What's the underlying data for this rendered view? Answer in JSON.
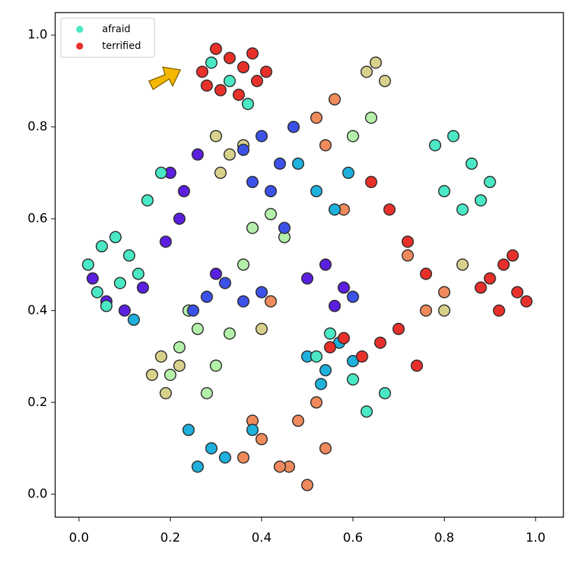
{
  "chart_data": {
    "type": "scatter",
    "xlim": [
      -0.052,
      1.061
    ],
    "ylim": [
      -0.05,
      1.049
    ],
    "xticks": [
      {
        "value": 0,
        "label": "0.0"
      },
      0.2,
      0.4,
      0.6,
      0.8,
      {
        "value": 1,
        "label": "1.0"
      }
    ],
    "yticks": [
      {
        "value": 0,
        "label": "0.0"
      },
      0.2,
      0.4,
      0.6,
      0.8,
      {
        "value": 1,
        "label": "1.0"
      }
    ],
    "legend": "upper left",
    "series": [
      {
        "color": "#ee8a5c",
        "x": [
          0.46,
          0.5,
          0.54,
          0.48,
          0.52,
          0.36,
          0.4,
          0.44,
          0.38,
          0.52,
          0.56,
          0.54,
          0.76,
          0.8,
          0.72,
          0.42,
          0.58
        ],
        "y": [
          0.06,
          0.02,
          0.1,
          0.16,
          0.2,
          0.08,
          0.12,
          0.06,
          0.16,
          0.82,
          0.86,
          0.76,
          0.4,
          0.44,
          0.52,
          0.42,
          0.62
        ]
      },
      {
        "color": "#d8d18c",
        "x": [
          0.3,
          0.33,
          0.36,
          0.31,
          0.16,
          0.19,
          0.22,
          0.18,
          0.65,
          0.67,
          0.63,
          0.84,
          0.8,
          0.4
        ],
        "y": [
          0.78,
          0.74,
          0.76,
          0.7,
          0.26,
          0.22,
          0.28,
          0.3,
          0.94,
          0.9,
          0.92,
          0.5,
          0.4,
          0.36
        ]
      },
      {
        "color": "#b4f0aa",
        "x": [
          0.22,
          0.26,
          0.3,
          0.24,
          0.28,
          0.38,
          0.42,
          0.45,
          0.36,
          0.2,
          0.33,
          0.6,
          0.64
        ],
        "y": [
          0.32,
          0.36,
          0.28,
          0.4,
          0.22,
          0.58,
          0.61,
          0.56,
          0.5,
          0.26,
          0.35,
          0.78,
          0.82
        ]
      },
      {
        "color": "#1fb0dc",
        "x": [
          0.5,
          0.54,
          0.57,
          0.6,
          0.53,
          0.26,
          0.29,
          0.24,
          0.32,
          0.52,
          0.56,
          0.59,
          0.48,
          0.38,
          0.12
        ],
        "y": [
          0.3,
          0.27,
          0.33,
          0.29,
          0.24,
          0.06,
          0.1,
          0.14,
          0.08,
          0.66,
          0.62,
          0.7,
          0.72,
          0.14,
          0.38
        ]
      },
      {
        "color": "#3c52e6",
        "x": [
          0.36,
          0.4,
          0.44,
          0.38,
          0.42,
          0.32,
          0.36,
          0.4,
          0.28,
          0.47,
          0.45,
          0.6,
          0.25
        ],
        "y": [
          0.75,
          0.78,
          0.72,
          0.68,
          0.66,
          0.46,
          0.42,
          0.44,
          0.43,
          0.8,
          0.58,
          0.43,
          0.4
        ]
      },
      {
        "color": "#5b1fe0",
        "x": [
          0.03,
          0.06,
          0.1,
          0.14,
          0.2,
          0.23,
          0.26,
          0.22,
          0.5,
          0.54,
          0.58,
          0.56,
          0.3,
          0.19
        ],
        "y": [
          0.47,
          0.42,
          0.4,
          0.45,
          0.7,
          0.66,
          0.74,
          0.6,
          0.47,
          0.5,
          0.45,
          0.41,
          0.48,
          0.55
        ]
      },
      {
        "name": "afraid",
        "color": "#4ae8c4",
        "x": [
          0.02,
          0.05,
          0.08,
          0.11,
          0.04,
          0.09,
          0.13,
          0.06,
          0.29,
          0.33,
          0.37,
          0.78,
          0.82,
          0.86,
          0.9,
          0.8,
          0.84,
          0.88,
          0.6,
          0.63,
          0.67,
          0.15,
          0.18,
          0.55,
          0.52
        ],
        "y": [
          0.5,
          0.54,
          0.56,
          0.52,
          0.44,
          0.46,
          0.48,
          0.41,
          0.94,
          0.9,
          0.85,
          0.76,
          0.78,
          0.72,
          0.68,
          0.66,
          0.62,
          0.64,
          0.25,
          0.18,
          0.22,
          0.64,
          0.7,
          0.35,
          0.3
        ]
      },
      {
        "name": "terrified",
        "color": "#e8302a",
        "x": [
          0.27,
          0.3,
          0.33,
          0.36,
          0.39,
          0.31,
          0.35,
          0.28,
          0.38,
          0.41,
          0.9,
          0.93,
          0.96,
          0.98,
          0.95,
          0.92,
          0.88,
          0.62,
          0.66,
          0.7,
          0.74,
          0.68,
          0.72,
          0.64,
          0.76,
          0.58,
          0.55
        ],
        "y": [
          0.92,
          0.97,
          0.95,
          0.93,
          0.9,
          0.88,
          0.87,
          0.89,
          0.96,
          0.92,
          0.47,
          0.5,
          0.44,
          0.42,
          0.52,
          0.4,
          0.45,
          0.3,
          0.33,
          0.36,
          0.28,
          0.62,
          0.55,
          0.68,
          0.48,
          0.34,
          0.32
        ]
      }
    ]
  }
}
